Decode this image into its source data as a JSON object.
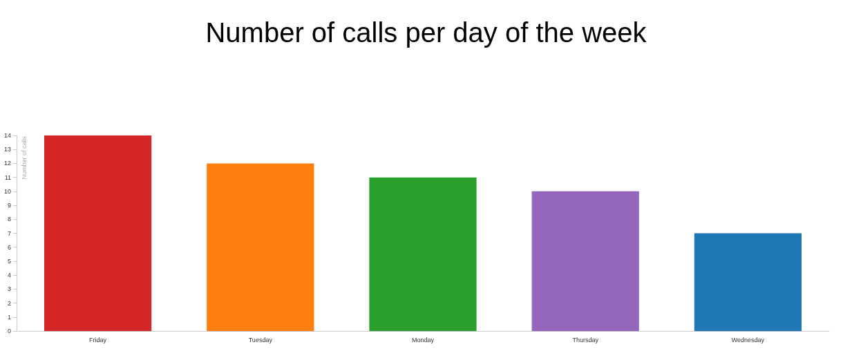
{
  "chart_data": {
    "type": "bar",
    "title": "Number of calls per day of the week",
    "ylabel": "Number of calls",
    "categories": [
      "Friday",
      "Tuesday",
      "Monday",
      "Thursday",
      "Wednesday"
    ],
    "values": [
      14,
      12,
      11,
      10,
      7
    ],
    "colors": [
      "#d62728",
      "#ff7f0e",
      "#2ca02c",
      "#9467bd",
      "#1f77b4"
    ],
    "ylim": [
      0,
      14
    ],
    "yticks": [
      0,
      1,
      2,
      3,
      4,
      5,
      6,
      7,
      8,
      9,
      10,
      11,
      12,
      13,
      14
    ],
    "grid": false
  }
}
